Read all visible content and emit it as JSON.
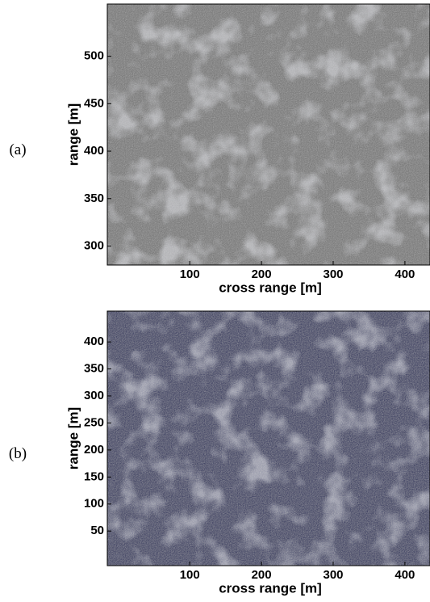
{
  "chart_data": [
    {
      "type": "image",
      "panel_label": "(a)",
      "xlabel": "cross range [m]",
      "ylabel": "range [m]",
      "xlim": [
        -15,
        435
      ],
      "xticks": [
        100,
        200,
        300,
        400
      ],
      "ylim": [
        280,
        555
      ],
      "yticks": [
        300,
        350,
        400,
        450,
        500
      ],
      "color": "#6e6e6e"
    },
    {
      "type": "image",
      "panel_label": "(b)",
      "xlabel": "cross range [m]",
      "ylabel": "range [m]",
      "xlim": [
        -15,
        435
      ],
      "xticks": [
        100,
        200,
        300,
        400
      ],
      "ylim": [
        -14,
        457
      ],
      "yticks": [
        50,
        100,
        150,
        200,
        250,
        300,
        350,
        400
      ],
      "color": "#1e2456"
    }
  ]
}
